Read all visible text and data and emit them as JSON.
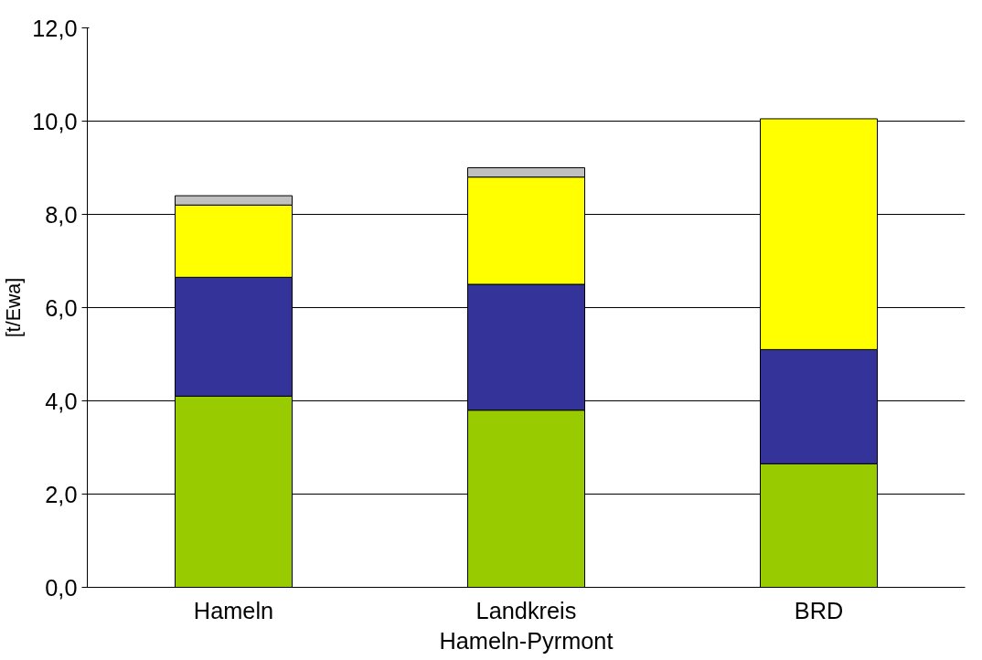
{
  "chart_data": {
    "type": "bar",
    "stacked": true,
    "ylabel": "[t/Ewa]",
    "categories": [
      "Hameln",
      "Landkreis\nHameln-Pyrmont",
      "BRD"
    ],
    "series": [
      {
        "color": "#99cc00",
        "values": [
          4.1,
          3.8,
          2.65
        ]
      },
      {
        "color": "#333399",
        "values": [
          2.55,
          2.7,
          2.45
        ]
      },
      {
        "color": "#ffff00",
        "values": [
          1.55,
          2.3,
          4.95
        ]
      },
      {
        "color": "#c0c0c0",
        "values": [
          0.2,
          0.2,
          0
        ]
      }
    ],
    "ylim": [
      0,
      12
    ],
    "yticks": [
      {
        "value": 0,
        "label": "0,0"
      },
      {
        "value": 2,
        "label": "2,0"
      },
      {
        "value": 4,
        "label": "4,0"
      },
      {
        "value": 6,
        "label": "6,0"
      },
      {
        "value": 8,
        "label": "8,0"
      },
      {
        "value": 10,
        "label": "10,0"
      },
      {
        "value": 12,
        "label": "12,0"
      }
    ],
    "grid": "y"
  }
}
